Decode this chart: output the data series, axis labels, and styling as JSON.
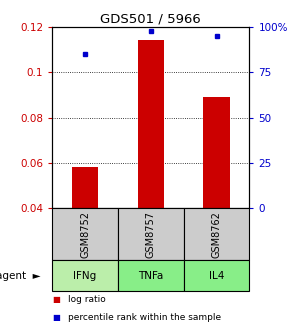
{
  "title": "GDS501 / 5966",
  "categories": [
    "IFNg",
    "TNFa",
    "IL4"
  ],
  "sample_ids": [
    "GSM8752",
    "GSM8757",
    "GSM8762"
  ],
  "bar_values": [
    0.058,
    0.114,
    0.089
  ],
  "bar_baseline": 0.04,
  "dot_values": [
    0.108,
    0.118,
    0.116
  ],
  "ylim": [
    0.04,
    0.12
  ],
  "y_ticks_left": [
    0.04,
    0.06,
    0.08,
    0.1,
    0.12
  ],
  "y_ticks_right": [
    0,
    25,
    50,
    75,
    100
  ],
  "y_ticks_right_labels": [
    "0",
    "25",
    "50",
    "75",
    "100%"
  ],
  "bar_color": "#cc0000",
  "dot_color": "#0000cc",
  "left_tick_color": "#cc0000",
  "right_tick_color": "#0000cc",
  "title_color": "#000000",
  "cell_bg_sample": "#cccccc",
  "cell_bg_agent_light": "#bbeeaa",
  "cell_bg_agent_mid": "#88ee88",
  "agent_label": "agent",
  "legend_log": "log ratio",
  "legend_pct": "percentile rank within the sample",
  "bar_width": 0.4
}
